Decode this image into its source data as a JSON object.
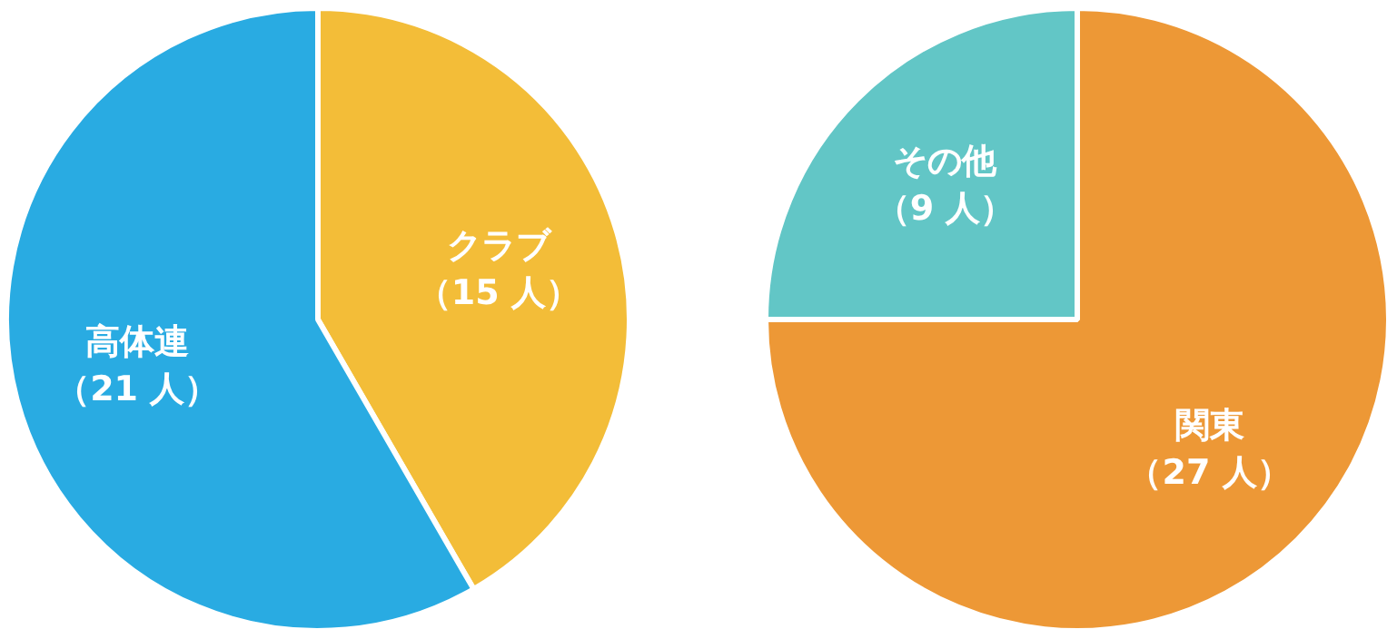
{
  "chart_data": [
    {
      "type": "pie",
      "categories": [
        "クラブ",
        "高体連"
      ],
      "values": [
        15,
        21
      ],
      "colors": [
        "#f3bd38",
        "#29abe2"
      ],
      "value_labels": [
        "（15 人）",
        "（21 人）"
      ]
    },
    {
      "type": "pie",
      "categories": [
        "関東",
        "その他"
      ],
      "values": [
        27,
        9
      ],
      "colors": [
        "#ed9836",
        "#62c6c6"
      ],
      "value_labels": [
        "（27 人）",
        "（9 人）"
      ]
    }
  ]
}
